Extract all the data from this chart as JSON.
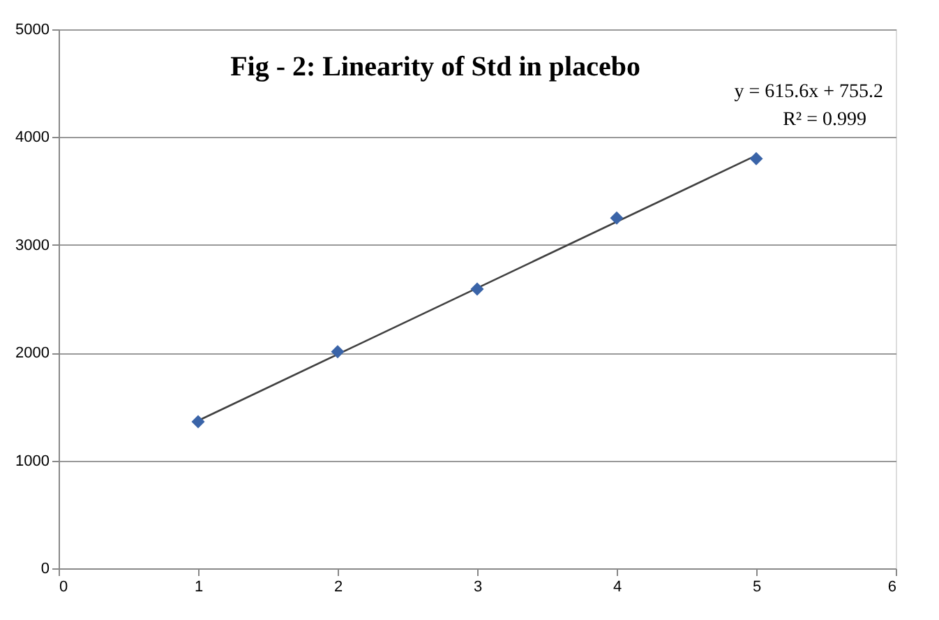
{
  "chart_data": {
    "type": "scatter",
    "title": "Fig - 2: Linearity of Std in placebo",
    "x": [
      1,
      2,
      3,
      4,
      5
    ],
    "series": [
      {
        "color": "#3a64a8",
        "marker": "diamond",
        "values": [
          1360,
          2010,
          2590,
          3250,
          3800
        ]
      },
      {
        "type": "line",
        "color": "#404040",
        "line_style": "solid",
        "marker": "none",
        "x": [
          1,
          5
        ],
        "values": [
          1370,
          3830
        ]
      }
    ],
    "annotations": [
      "y = 615.6x + 755.2",
      "R² = 0.999"
    ],
    "xlim": [
      0,
      6
    ],
    "xticks": [
      0,
      1,
      2,
      3,
      4,
      5,
      6
    ],
    "ylim": [
      0,
      5000
    ],
    "yticks": [
      0,
      1000,
      2000,
      3000,
      4000,
      5000
    ],
    "grid": "y"
  }
}
